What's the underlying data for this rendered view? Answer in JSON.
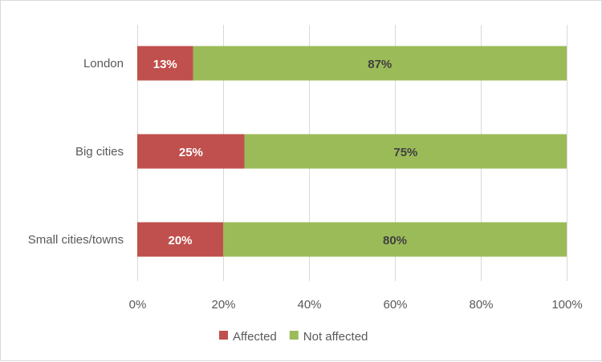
{
  "chart_data": {
    "type": "bar",
    "orientation": "horizontal",
    "stacked": "percent",
    "categories": [
      "London",
      "Big cities",
      "Small cities/towns"
    ],
    "series": [
      {
        "name": "Affected",
        "values": [
          13,
          25,
          20
        ],
        "color": "#C0504D",
        "labels": [
          "13%",
          "25%",
          "20%"
        ]
      },
      {
        "name": "Not affected",
        "values": [
          87,
          75,
          80
        ],
        "color": "#9BBB59",
        "labels": [
          "87%",
          "75%",
          "80%"
        ]
      }
    ],
    "xlim": [
      0,
      100
    ],
    "xticks": [
      "0%",
      "20%",
      "40%",
      "60%",
      "80%",
      "100%"
    ],
    "grid": true,
    "legend": "bottom"
  }
}
